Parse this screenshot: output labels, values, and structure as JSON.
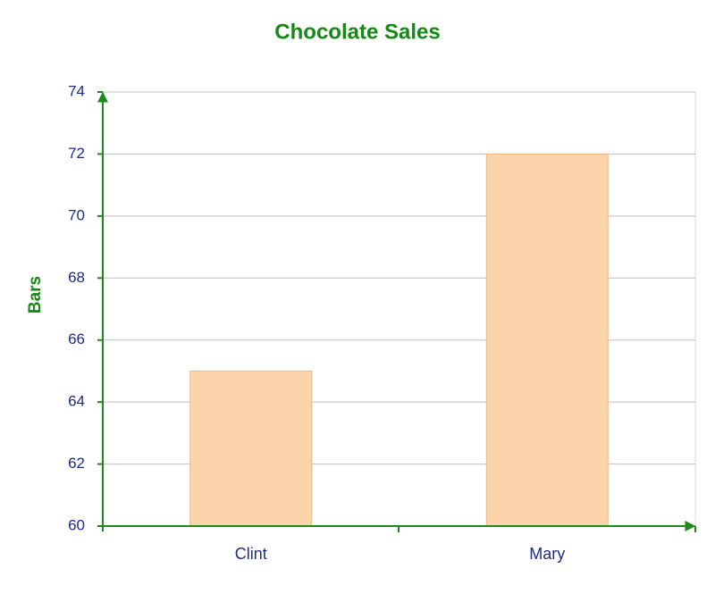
{
  "chart_data": {
    "type": "bar",
    "title": "Chocolate Sales",
    "y_label": "Bars",
    "categories": [
      "Clint",
      "Mary"
    ],
    "values": [
      65,
      72
    ],
    "color": "#fcd3aa",
    "ylim": [
      60,
      74
    ],
    "yticks": [
      60,
      62,
      64,
      66,
      68,
      70,
      72,
      74
    ],
    "grid": true
  }
}
